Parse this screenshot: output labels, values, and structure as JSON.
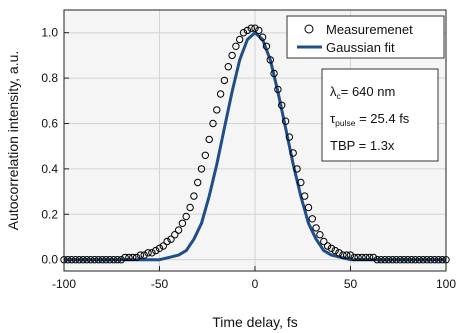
{
  "chart_data": {
    "type": "scatter",
    "title": "",
    "xlabel": "Time delay, fs",
    "ylabel": "Autocorrelation intensity, a.u.",
    "xlim": [
      -100,
      100
    ],
    "ylim": [
      -0.05,
      1.1
    ],
    "grid": true,
    "legend_position": "top-right",
    "x_ticks": [
      -100,
      -50,
      0,
      50,
      100
    ],
    "x_tick_labels": [
      "-100",
      "-50",
      "0",
      "50",
      "100"
    ],
    "y_ticks": [
      0.0,
      0.2,
      0.4,
      0.6,
      0.8,
      1.0
    ],
    "y_tick_labels": [
      "0.0",
      "0.2",
      "0.4",
      "0.6",
      "0.8",
      "1.0"
    ],
    "series": [
      {
        "name": "Measuremenet",
        "kind": "markers",
        "marker": "open-circle",
        "x": [
          -100,
          -98,
          -96,
          -94,
          -92,
          -90,
          -88,
          -86,
          -84,
          -82,
          -80,
          -78,
          -76,
          -74,
          -72,
          -70,
          -68,
          -66,
          -64,
          -62,
          -60,
          -58,
          -56,
          -54,
          -52,
          -50,
          -48,
          -46,
          -44,
          -42,
          -40,
          -38,
          -36,
          -34,
          -32,
          -30,
          -28,
          -26,
          -24,
          -22,
          -20,
          -18,
          -16,
          -14,
          -12,
          -10,
          -8,
          -6,
          -4,
          -2,
          0,
          2,
          4,
          6,
          8,
          10,
          12,
          14,
          16,
          18,
          20,
          22,
          24,
          26,
          28,
          30,
          32,
          34,
          36,
          38,
          40,
          42,
          44,
          46,
          48,
          50,
          52,
          54,
          56,
          58,
          60,
          62,
          64,
          66,
          68,
          70,
          72,
          74,
          76,
          78,
          80,
          82,
          84,
          86,
          88,
          90,
          92,
          94,
          96,
          98,
          100
        ],
        "y": [
          0.0,
          0.0,
          0.0,
          0.0,
          0.0,
          0.0,
          0.0,
          0.0,
          0.0,
          0.0,
          0.0,
          0.0,
          0.0,
          0.0,
          0.0,
          0.0,
          0.01,
          0.01,
          0.01,
          0.01,
          0.02,
          0.02,
          0.03,
          0.03,
          0.04,
          0.05,
          0.06,
          0.08,
          0.09,
          0.11,
          0.13,
          0.16,
          0.19,
          0.23,
          0.28,
          0.34,
          0.4,
          0.46,
          0.53,
          0.6,
          0.66,
          0.73,
          0.79,
          0.85,
          0.9,
          0.94,
          0.97,
          1.0,
          1.01,
          1.02,
          1.02,
          1.01,
          0.98,
          0.94,
          0.88,
          0.82,
          0.75,
          0.68,
          0.61,
          0.54,
          0.47,
          0.4,
          0.34,
          0.28,
          0.23,
          0.18,
          0.14,
          0.11,
          0.08,
          0.06,
          0.05,
          0.04,
          0.03,
          0.02,
          0.02,
          0.02,
          0.01,
          0.01,
          0.01,
          0.01,
          0.01,
          0.01,
          0.0,
          0.0,
          0.0,
          0.0,
          0.0,
          0.0,
          0.0,
          0.0,
          0.0,
          0.0,
          0.0,
          0.0,
          0.0,
          0.0,
          0.0,
          0.0,
          0.0,
          0.0,
          0.0
        ],
        "color": "#000000"
      },
      {
        "name": "Gaussian fit",
        "kind": "line",
        "x": [
          -100,
          -80,
          -70,
          -60,
          -55,
          -50,
          -45,
          -40,
          -36,
          -32,
          -28,
          -24,
          -20,
          -16,
          -12,
          -8,
          -4,
          0,
          4,
          8,
          12,
          16,
          20,
          24,
          28,
          32,
          36,
          40,
          45,
          50,
          55,
          60,
          70,
          80,
          100
        ],
        "y": [
          0.0,
          0.0,
          0.0,
          0.0,
          0.0,
          0.0,
          0.01,
          0.02,
          0.04,
          0.09,
          0.16,
          0.28,
          0.42,
          0.58,
          0.74,
          0.88,
          0.97,
          1.0,
          0.97,
          0.88,
          0.74,
          0.58,
          0.42,
          0.28,
          0.16,
          0.09,
          0.04,
          0.02,
          0.01,
          0.0,
          0.0,
          0.0,
          0.0,
          0.0,
          0.0
        ],
        "color": "#1f4e89"
      }
    ]
  },
  "info_box": {
    "lines": [
      {
        "symbol": "λ",
        "sub": "c",
        "rest": "= 640 nm"
      },
      {
        "symbol": "τ",
        "sub": "pulse",
        "rest": " = 25.4 fs"
      },
      {
        "symbol": "",
        "sub": "",
        "rest": "TBP = 1.3x"
      }
    ]
  },
  "colors": {
    "plot_background": "#f5f5f5",
    "grid": "#d4d4d4",
    "fit_line": "#1f4e89",
    "marker_edge": "#000000"
  }
}
